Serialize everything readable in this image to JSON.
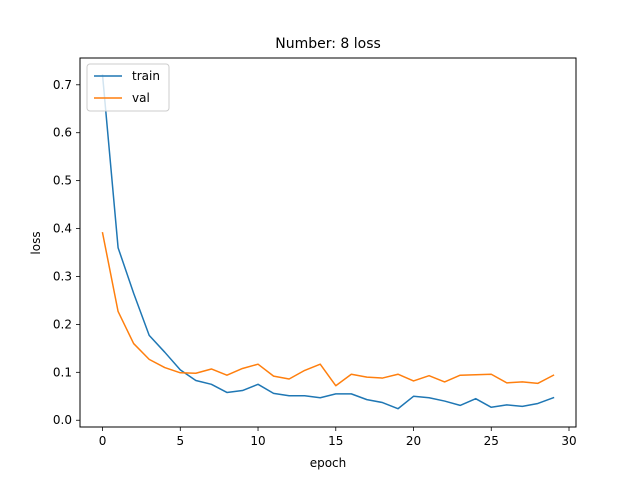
{
  "chart_data": {
    "type": "line",
    "title": "Number: 8 loss",
    "xlabel": "epoch",
    "ylabel": "loss",
    "xlim": [
      -1.45,
      30.45
    ],
    "ylim": [
      -0.0141,
      0.7559
    ],
    "xticks": [
      0,
      5,
      10,
      15,
      20,
      25,
      30
    ],
    "yticks": [
      0.0,
      0.1,
      0.2,
      0.3,
      0.4,
      0.5,
      0.6,
      0.7
    ],
    "ytick_labels": [
      "0.0",
      "0.1",
      "0.2",
      "0.3",
      "0.4",
      "0.5",
      "0.6",
      "0.7"
    ],
    "grid": false,
    "legend_position": "top-left",
    "x": [
      0,
      1,
      2,
      3,
      4,
      5,
      6,
      7,
      8,
      9,
      10,
      11,
      12,
      13,
      14,
      15,
      16,
      17,
      18,
      19,
      20,
      21,
      22,
      23,
      24,
      25,
      26,
      27,
      28,
      29
    ],
    "series": [
      {
        "name": "train",
        "color": "#1f77b4",
        "values": [
          0.72,
          0.36,
          0.265,
          0.177,
          0.142,
          0.105,
          0.083,
          0.075,
          0.058,
          0.062,
          0.075,
          0.056,
          0.051,
          0.051,
          0.047,
          0.055,
          0.055,
          0.043,
          0.037,
          0.024,
          0.05,
          0.047,
          0.04,
          0.031,
          0.045,
          0.027,
          0.032,
          0.029,
          0.035,
          0.047
        ]
      },
      {
        "name": "val",
        "color": "#ff7f0e",
        "values": [
          0.391,
          0.227,
          0.16,
          0.127,
          0.11,
          0.099,
          0.098,
          0.107,
          0.094,
          0.108,
          0.117,
          0.092,
          0.086,
          0.104,
          0.117,
          0.072,
          0.096,
          0.09,
          0.088,
          0.096,
          0.082,
          0.093,
          0.08,
          0.094,
          0.095,
          0.096,
          0.078,
          0.08,
          0.077,
          0.094
        ]
      }
    ]
  }
}
